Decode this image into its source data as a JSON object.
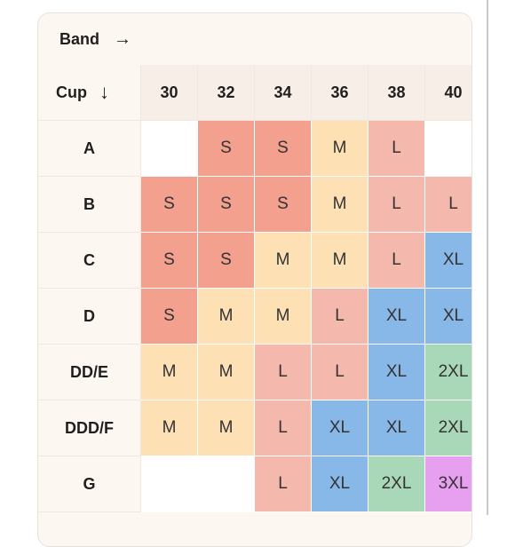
{
  "header": {
    "band_label": "Band",
    "band_arrow": "→",
    "cup_label": "Cup",
    "cup_arrow": "↓"
  },
  "columns": [
    "30",
    "32",
    "34",
    "36",
    "38",
    "40"
  ],
  "rows": [
    {
      "cup": "A",
      "sizes": [
        "",
        "S",
        "S",
        "M",
        "L",
        ""
      ]
    },
    {
      "cup": "B",
      "sizes": [
        "S",
        "S",
        "S",
        "M",
        "L",
        "L"
      ]
    },
    {
      "cup": "C",
      "sizes": [
        "S",
        "S",
        "M",
        "M",
        "L",
        "XL"
      ]
    },
    {
      "cup": "D",
      "sizes": [
        "S",
        "M",
        "M",
        "L",
        "XL",
        "XL"
      ]
    },
    {
      "cup": "DD/E",
      "sizes": [
        "M",
        "M",
        "L",
        "L",
        "XL",
        "2XL"
      ]
    },
    {
      "cup": "DDD/F",
      "sizes": [
        "M",
        "M",
        "L",
        "XL",
        "XL",
        "2XL"
      ]
    },
    {
      "cup": "G",
      "sizes": [
        "",
        "",
        "L",
        "XL",
        "2XL",
        "3XL"
      ]
    }
  ],
  "size_colors": {
    "S": "#f4a08f",
    "M": "#fde0b4",
    "L": "#f4b8ad",
    "XL": "#88b8e8",
    "2XL": "#a8d8b8",
    "3XL": "#e7a0f0",
    "": "#ffffff"
  }
}
